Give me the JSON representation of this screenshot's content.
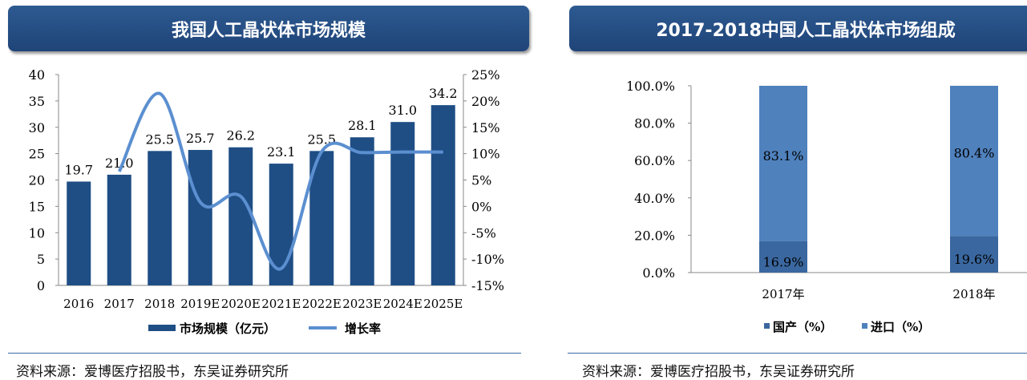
{
  "left": {
    "title": "我国人工晶状体市场规模",
    "source": "资料来源：爱博医疗招股书，东吴证券研究所"
  },
  "right": {
    "title": "2017-2018中国人工晶状体市场组成",
    "source": "资料来源：爱博医疗招股书，东吴证券研究所"
  },
  "chart_data": [
    {
      "type": "bar+line",
      "categories": [
        "2016",
        "2017",
        "2018",
        "2019E",
        "2020E",
        "2021E",
        "2022E",
        "2023E",
        "2024E",
        "2025E"
      ],
      "series": [
        {
          "name": "市场规模（亿元）",
          "type": "bar",
          "axis": "left",
          "values": [
            19.7,
            21.0,
            25.5,
            25.7,
            26.2,
            23.1,
            25.5,
            28.1,
            31.0,
            34.2
          ],
          "color": "#1f4e85"
        },
        {
          "name": "增长率",
          "type": "line",
          "axis": "right",
          "values": [
            null,
            6.6,
            21.4,
            0.8,
            1.9,
            -11.8,
            10.4,
            10.2,
            10.3,
            10.3
          ],
          "color": "#5b8fd0"
        }
      ],
      "ylim": [
        0,
        40
      ],
      "yticks": [
        "0",
        "5",
        "10",
        "15",
        "20",
        "25",
        "30",
        "35",
        "40"
      ],
      "y2lim": [
        -15,
        25
      ],
      "y2ticks": [
        "-15%",
        "-10%",
        "-5%",
        "0%",
        "5%",
        "10%",
        "15%",
        "20%",
        "25%"
      ],
      "legend": "bottom"
    },
    {
      "type": "stacked-bar",
      "categories": [
        "2017年",
        "2018年"
      ],
      "series": [
        {
          "name": "国产（%）",
          "values": [
            16.9,
            19.6
          ],
          "labels": [
            "16.9%",
            "19.6%"
          ],
          "color": "#3a679f"
        },
        {
          "name": "进口（%）",
          "values": [
            83.1,
            80.4
          ],
          "labels": [
            "83.1%",
            "80.4%"
          ],
          "color": "#4f81bd"
        }
      ],
      "ylim": [
        0,
        100
      ],
      "yticks": [
        "0.0%",
        "20.0%",
        "40.0%",
        "60.0%",
        "80.0%",
        "100.0%"
      ],
      "legend": "bottom"
    }
  ]
}
